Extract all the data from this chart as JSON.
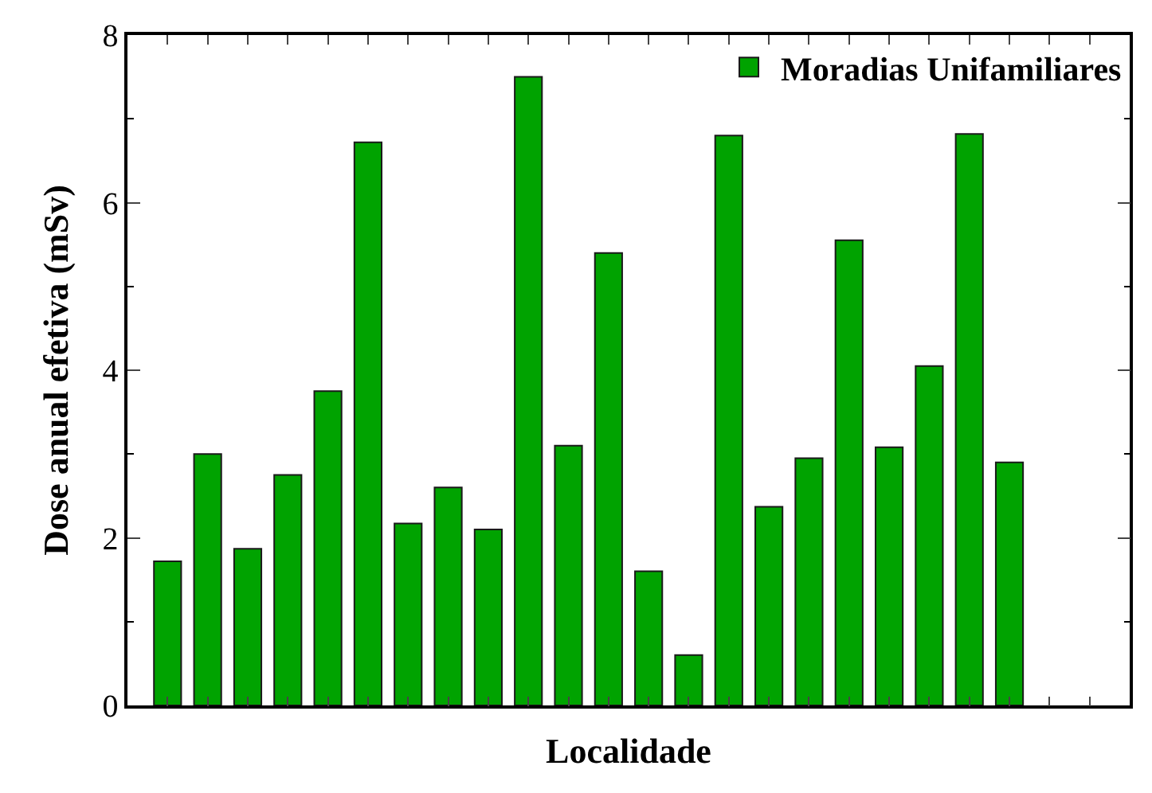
{
  "chart_data": {
    "type": "bar",
    "xlabel": "Localidade",
    "ylabel": "Dose anual efetiva (mSv)",
    "categories": [
      null,
      null,
      null,
      null,
      null,
      null,
      null,
      null,
      null,
      null,
      null,
      null,
      null,
      null,
      null,
      null,
      null,
      null,
      null,
      null,
      null,
      null,
      null,
      null
    ],
    "series": [
      {
        "name": "Moradias Unifamiliares",
        "color": "#00a300",
        "values": [
          1.72,
          3.0,
          1.87,
          2.75,
          3.75,
          6.72,
          2.17,
          2.6,
          2.1,
          7.5,
          3.1,
          5.4,
          1.6,
          0.6,
          6.8,
          2.37,
          2.95,
          5.55,
          3.08,
          4.05,
          6.82,
          2.9,
          null,
          null
        ]
      }
    ],
    "ylim": [
      0,
      8
    ],
    "yticks": [
      0,
      2,
      4,
      6,
      8
    ],
    "tick_labels": "y",
    "legend": "top right"
  }
}
